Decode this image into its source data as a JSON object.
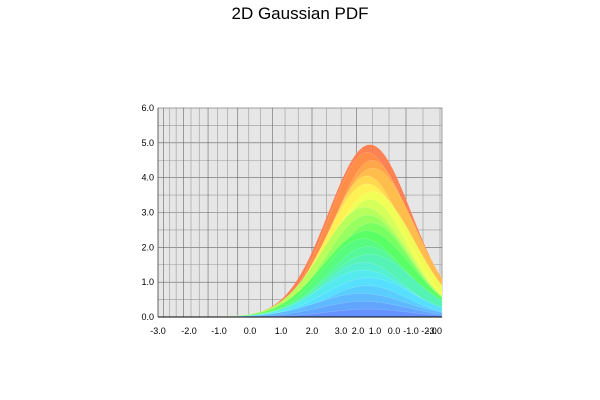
{
  "chart_data": {
    "type": "area",
    "title": "2D Gaussian PDF",
    "ylabel": "",
    "xlabel": "",
    "ylim": [
      0,
      6
    ],
    "yticks": [
      "0.0",
      "1.0",
      "2.0",
      "3.0",
      "4.0",
      "5.0",
      "6.0"
    ],
    "xaxis_left": {
      "label": "",
      "range": [
        -3,
        3
      ],
      "ticks": [
        "-3.0",
        "-2.0",
        "-1.0",
        "0.0",
        "1.0",
        "2.0",
        "3.0"
      ]
    },
    "xaxis_right": {
      "label": "",
      "range": [
        3,
        -3
      ],
      "ticks": [
        "2.0",
        "1.0",
        "0.0",
        "-1.0",
        "-2.0",
        "-3.0"
      ]
    },
    "surface": {
      "peak_value": 4.95,
      "peak_x": 1.5,
      "sigma": 0.88,
      "colormap": [
        "#6a7cff",
        "#55e8ff",
        "#55ff66",
        "#ffff55",
        "#ff7744"
      ]
    },
    "grid": true,
    "background": "#e6e6e6"
  }
}
